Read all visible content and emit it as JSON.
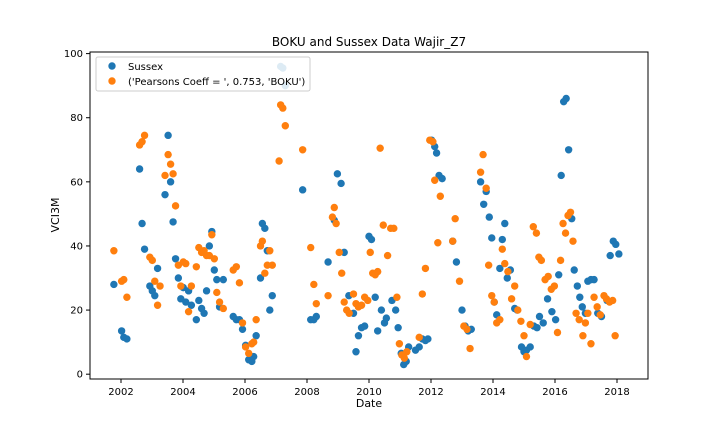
{
  "chart_data": {
    "type": "scatter",
    "title": "BOKU and Sussex Data Wajir_Z7",
    "xlabel": "Date",
    "ylabel": "VCI3M",
    "xlim": [
      2001.0,
      2019.0
    ],
    "ylim": [
      -1.5,
      100.5
    ],
    "x_ticks": [
      {
        "value": 2002,
        "label": "2002"
      },
      {
        "value": 2004,
        "label": "2004"
      },
      {
        "value": 2006,
        "label": "2006"
      },
      {
        "value": 2008,
        "label": "2008"
      },
      {
        "value": 2010,
        "label": "2010"
      },
      {
        "value": 2012,
        "label": "2012"
      },
      {
        "value": 2014,
        "label": "2014"
      },
      {
        "value": 2016,
        "label": "2016"
      },
      {
        "value": 2018,
        "label": "2018"
      }
    ],
    "y_ticks": [
      {
        "value": 0,
        "label": "0"
      },
      {
        "value": 20,
        "label": "20"
      },
      {
        "value": 40,
        "label": "40"
      },
      {
        "value": 60,
        "label": "60"
      },
      {
        "value": 80,
        "label": "80"
      },
      {
        "value": 100,
        "label": "100"
      }
    ],
    "grid": false,
    "legend_position": "top-left",
    "series": [
      {
        "name": "Sussex",
        "color": "#1f77b4",
        "points": [
          [
            2001.77,
            28
          ],
          [
            2002.02,
            13.5
          ],
          [
            2002.09,
            11.5
          ],
          [
            2002.19,
            11
          ],
          [
            2002.6,
            64
          ],
          [
            2002.68,
            47
          ],
          [
            2002.76,
            39
          ],
          [
            2002.93,
            27.5
          ],
          [
            2003.01,
            26
          ],
          [
            2003.09,
            24.5
          ],
          [
            2003.18,
            33
          ],
          [
            2003.42,
            56
          ],
          [
            2003.52,
            74.5
          ],
          [
            2003.6,
            60
          ],
          [
            2003.68,
            47.5
          ],
          [
            2003.76,
            36
          ],
          [
            2003.85,
            30
          ],
          [
            2003.93,
            23.5
          ],
          [
            2004.01,
            27
          ],
          [
            2004.09,
            22.5
          ],
          [
            2004.18,
            26
          ],
          [
            2004.27,
            21.5
          ],
          [
            2004.43,
            17
          ],
          [
            2004.51,
            23
          ],
          [
            2004.6,
            20.5
          ],
          [
            2004.68,
            19
          ],
          [
            2004.76,
            26
          ],
          [
            2004.85,
            40
          ],
          [
            2004.93,
            44.5
          ],
          [
            2005.01,
            32.5
          ],
          [
            2005.09,
            29.5
          ],
          [
            2005.18,
            21
          ],
          [
            2005.3,
            29.5
          ],
          [
            2005.62,
            18
          ],
          [
            2005.72,
            17
          ],
          [
            2005.82,
            17
          ],
          [
            2005.92,
            14
          ],
          [
            2006.02,
            9
          ],
          [
            2006.12,
            4.5
          ],
          [
            2006.22,
            4
          ],
          [
            2006.28,
            5.5
          ],
          [
            2006.36,
            12
          ],
          [
            2006.5,
            30
          ],
          [
            2006.56,
            47
          ],
          [
            2006.64,
            45.5
          ],
          [
            2006.72,
            38.5
          ],
          [
            2006.8,
            20
          ],
          [
            2006.88,
            24.5
          ],
          [
            2007.15,
            96
          ],
          [
            2007.22,
            95.5
          ],
          [
            2007.3,
            90
          ],
          [
            2007.86,
            57.5
          ],
          [
            2008.12,
            17
          ],
          [
            2008.22,
            17
          ],
          [
            2008.3,
            18
          ],
          [
            2008.68,
            35
          ],
          [
            2008.88,
            48
          ],
          [
            2008.98,
            62.5
          ],
          [
            2009.1,
            59.5
          ],
          [
            2009.2,
            38
          ],
          [
            2009.35,
            24.5
          ],
          [
            2009.5,
            19
          ],
          [
            2009.58,
            7
          ],
          [
            2009.66,
            12
          ],
          [
            2009.76,
            14.5
          ],
          [
            2009.86,
            15
          ],
          [
            2010.0,
            43
          ],
          [
            2010.08,
            42
          ],
          [
            2010.2,
            24
          ],
          [
            2010.28,
            13.5
          ],
          [
            2010.4,
            20
          ],
          [
            2010.5,
            16
          ],
          [
            2010.56,
            17.5
          ],
          [
            2010.74,
            23
          ],
          [
            2010.86,
            20
          ],
          [
            2010.94,
            14.5
          ],
          [
            2011.04,
            6.5
          ],
          [
            2011.12,
            3
          ],
          [
            2011.2,
            4
          ],
          [
            2011.28,
            8.5
          ],
          [
            2011.5,
            7.5
          ],
          [
            2011.62,
            8.5
          ],
          [
            2011.72,
            11
          ],
          [
            2011.82,
            10.5
          ],
          [
            2011.9,
            11
          ],
          [
            2012.02,
            73
          ],
          [
            2012.12,
            71
          ],
          [
            2012.18,
            69
          ],
          [
            2012.26,
            62
          ],
          [
            2012.36,
            61
          ],
          [
            2012.7,
            41.5
          ],
          [
            2012.82,
            35
          ],
          [
            2013.0,
            20
          ],
          [
            2013.1,
            15
          ],
          [
            2013.2,
            13.5
          ],
          [
            2013.3,
            14
          ],
          [
            2013.6,
            60
          ],
          [
            2013.7,
            53
          ],
          [
            2013.78,
            57
          ],
          [
            2013.88,
            49
          ],
          [
            2013.96,
            42.5
          ],
          [
            2014.04,
            22.5
          ],
          [
            2014.12,
            18.5
          ],
          [
            2014.22,
            33
          ],
          [
            2014.3,
            42
          ],
          [
            2014.38,
            47
          ],
          [
            2014.46,
            30
          ],
          [
            2014.56,
            32.5
          ],
          [
            2014.7,
            20.5
          ],
          [
            2014.78,
            20
          ],
          [
            2014.92,
            8.5
          ],
          [
            2015.0,
            7
          ],
          [
            2015.08,
            7.5
          ],
          [
            2015.2,
            8.5
          ],
          [
            2015.32,
            15
          ],
          [
            2015.42,
            14.5
          ],
          [
            2015.5,
            18
          ],
          [
            2015.62,
            16
          ],
          [
            2015.76,
            23.5
          ],
          [
            2015.9,
            19.5
          ],
          [
            2016.02,
            17
          ],
          [
            2016.12,
            31
          ],
          [
            2016.2,
            62
          ],
          [
            2016.28,
            85
          ],
          [
            2016.36,
            86
          ],
          [
            2016.44,
            70
          ],
          [
            2016.54,
            48.5
          ],
          [
            2016.62,
            32.5
          ],
          [
            2016.72,
            27.5
          ],
          [
            2016.8,
            24
          ],
          [
            2016.88,
            21
          ],
          [
            2016.98,
            19
          ],
          [
            2017.06,
            29
          ],
          [
            2017.16,
            29.5
          ],
          [
            2017.26,
            29.5
          ],
          [
            2017.38,
            19
          ],
          [
            2017.5,
            18
          ],
          [
            2017.68,
            23
          ],
          [
            2017.78,
            37
          ],
          [
            2017.88,
            41.5
          ],
          [
            2017.96,
            40.5
          ],
          [
            2018.06,
            37.5
          ]
        ]
      },
      {
        "name": "('Pearsons Coeff = ', 0.753, 'BOKU')",
        "color": "#ff7f0e",
        "points": [
          [
            2001.77,
            38.5
          ],
          [
            2002.02,
            29
          ],
          [
            2002.09,
            29.5
          ],
          [
            2002.19,
            24
          ],
          [
            2002.6,
            71.5
          ],
          [
            2002.68,
            72.5
          ],
          [
            2002.76,
            74.5
          ],
          [
            2002.93,
            36.5
          ],
          [
            2003.01,
            35.5
          ],
          [
            2003.09,
            29
          ],
          [
            2003.18,
            21.5
          ],
          [
            2003.26,
            27.5
          ],
          [
            2003.42,
            62
          ],
          [
            2003.52,
            68.5
          ],
          [
            2003.6,
            65.5
          ],
          [
            2003.68,
            62.5
          ],
          [
            2003.76,
            52.5
          ],
          [
            2003.85,
            34
          ],
          [
            2003.93,
            27.5
          ],
          [
            2004.01,
            35
          ],
          [
            2004.09,
            34.5
          ],
          [
            2004.18,
            19.5
          ],
          [
            2004.27,
            27.5
          ],
          [
            2004.43,
            33.5
          ],
          [
            2004.51,
            39.5
          ],
          [
            2004.6,
            38
          ],
          [
            2004.68,
            38.5
          ],
          [
            2004.76,
            37
          ],
          [
            2004.85,
            37
          ],
          [
            2004.93,
            43.5
          ],
          [
            2005.01,
            36
          ],
          [
            2005.09,
            25.5
          ],
          [
            2005.18,
            22.5
          ],
          [
            2005.3,
            20.5
          ],
          [
            2005.62,
            32.5
          ],
          [
            2005.72,
            33.5
          ],
          [
            2005.82,
            28.5
          ],
          [
            2005.92,
            16
          ],
          [
            2006.02,
            8.5
          ],
          [
            2006.12,
            6.5
          ],
          [
            2006.22,
            9.5
          ],
          [
            2006.28,
            10
          ],
          [
            2006.36,
            17
          ],
          [
            2006.5,
            40
          ],
          [
            2006.56,
            41.5
          ],
          [
            2006.64,
            31.5
          ],
          [
            2006.72,
            34
          ],
          [
            2006.8,
            38.5
          ],
          [
            2006.88,
            34
          ],
          [
            2007.1,
            66.5
          ],
          [
            2007.15,
            84
          ],
          [
            2007.22,
            83
          ],
          [
            2007.3,
            77.5
          ],
          [
            2007.86,
            70
          ],
          [
            2008.12,
            39.5
          ],
          [
            2008.22,
            28
          ],
          [
            2008.3,
            22
          ],
          [
            2008.68,
            24.5
          ],
          [
            2008.82,
            49
          ],
          [
            2008.88,
            52
          ],
          [
            2008.94,
            47
          ],
          [
            2009.04,
            38
          ],
          [
            2009.12,
            31.5
          ],
          [
            2009.2,
            22.5
          ],
          [
            2009.28,
            20
          ],
          [
            2009.36,
            19
          ],
          [
            2009.5,
            25
          ],
          [
            2009.58,
            22
          ],
          [
            2009.66,
            21
          ],
          [
            2009.76,
            21.5
          ],
          [
            2009.86,
            24
          ],
          [
            2009.96,
            23
          ],
          [
            2010.04,
            38
          ],
          [
            2010.12,
            31.5
          ],
          [
            2010.2,
            31
          ],
          [
            2010.28,
            32
          ],
          [
            2010.36,
            70.5
          ],
          [
            2010.46,
            46.5
          ],
          [
            2010.6,
            37
          ],
          [
            2010.7,
            45.5
          ],
          [
            2010.8,
            45.5
          ],
          [
            2010.9,
            24
          ],
          [
            2010.98,
            9.5
          ],
          [
            2011.06,
            6
          ],
          [
            2011.14,
            5
          ],
          [
            2011.22,
            7
          ],
          [
            2011.62,
            11.5
          ],
          [
            2011.72,
            25
          ],
          [
            2011.82,
            33
          ],
          [
            2011.96,
            73
          ],
          [
            2012.06,
            72.5
          ],
          [
            2012.12,
            60.5
          ],
          [
            2012.22,
            41
          ],
          [
            2012.3,
            55.5
          ],
          [
            2012.7,
            41.5
          ],
          [
            2012.78,
            48.5
          ],
          [
            2012.92,
            29
          ],
          [
            2013.06,
            15
          ],
          [
            2013.16,
            14
          ],
          [
            2013.26,
            8
          ],
          [
            2013.6,
            63
          ],
          [
            2013.68,
            68.5
          ],
          [
            2013.78,
            58
          ],
          [
            2013.86,
            34
          ],
          [
            2013.96,
            24.5
          ],
          [
            2014.04,
            22.5
          ],
          [
            2014.12,
            16
          ],
          [
            2014.22,
            17
          ],
          [
            2014.3,
            39
          ],
          [
            2014.38,
            34.5
          ],
          [
            2014.48,
            32
          ],
          [
            2014.6,
            23.5
          ],
          [
            2014.7,
            27.5
          ],
          [
            2014.8,
            20
          ],
          [
            2014.9,
            16.5
          ],
          [
            2015.0,
            12
          ],
          [
            2015.08,
            5.5
          ],
          [
            2015.2,
            15.5
          ],
          [
            2015.3,
            46
          ],
          [
            2015.4,
            44
          ],
          [
            2015.48,
            36.5
          ],
          [
            2015.56,
            35.5
          ],
          [
            2015.68,
            29.5
          ],
          [
            2015.78,
            30.5
          ],
          [
            2015.88,
            26.5
          ],
          [
            2015.98,
            27.5
          ],
          [
            2016.08,
            13
          ],
          [
            2016.18,
            35.5
          ],
          [
            2016.26,
            47
          ],
          [
            2016.34,
            44
          ],
          [
            2016.42,
            49.5
          ],
          [
            2016.5,
            50.5
          ],
          [
            2016.58,
            41.5
          ],
          [
            2016.68,
            19
          ],
          [
            2016.78,
            17
          ],
          [
            2016.9,
            12
          ],
          [
            2016.98,
            16
          ],
          [
            2017.06,
            19
          ],
          [
            2017.16,
            9.5
          ],
          [
            2017.26,
            24
          ],
          [
            2017.36,
            21
          ],
          [
            2017.46,
            18.5
          ],
          [
            2017.58,
            24.5
          ],
          [
            2017.66,
            23.5
          ],
          [
            2017.76,
            22.5
          ],
          [
            2017.86,
            23
          ],
          [
            2017.94,
            12
          ]
        ]
      }
    ]
  }
}
